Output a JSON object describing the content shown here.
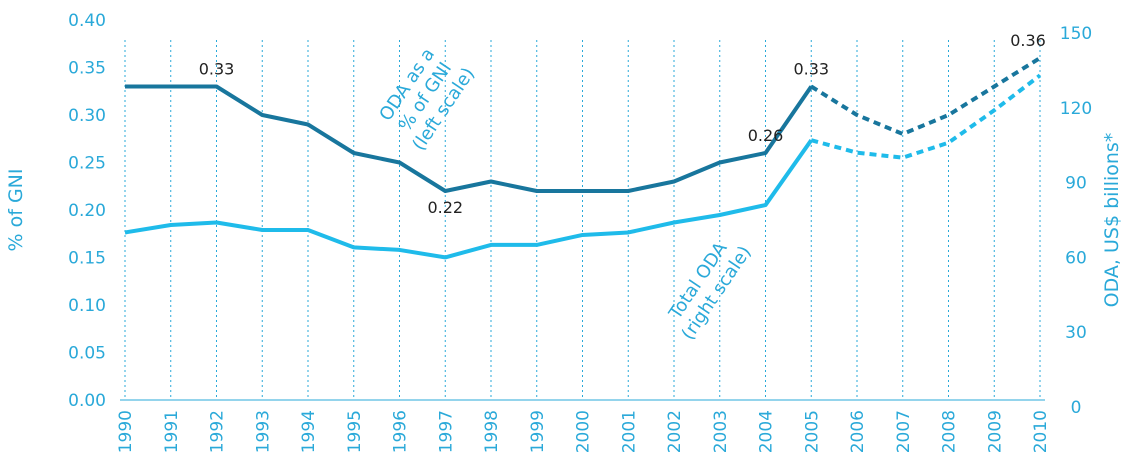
{
  "chart_data": {
    "type": "line",
    "ylabel": "% of GNI",
    "y2label": "ODA, US$ billions*",
    "x": [
      1990,
      1991,
      1992,
      1993,
      1994,
      1995,
      1996,
      1997,
      1998,
      1999,
      2000,
      2001,
      2002,
      2003,
      2004,
      2005,
      2006,
      2007,
      2008,
      2009,
      2010
    ],
    "xlim": [
      1990,
      2010
    ],
    "ylim": [
      0,
      0.4
    ],
    "yticks": [
      {
        "value": 0,
        "label": "0.00"
      },
      {
        "value": 0.05,
        "label": "0.05"
      },
      {
        "value": 0.1,
        "label": "0.10"
      },
      {
        "value": 0.15,
        "label": "0.15"
      },
      {
        "value": 0.2,
        "label": "0.20"
      },
      {
        "value": 0.25,
        "label": "0.25"
      },
      {
        "value": 0.3,
        "label": "0.30"
      },
      {
        "value": 0.35,
        "label": "0.35"
      },
      {
        "value": 0.4,
        "label": "0.40"
      }
    ],
    "y2lim": [
      0,
      150
    ],
    "y2ticks": [
      0,
      30,
      60,
      90,
      120,
      150
    ],
    "grid": true,
    "series": [
      {
        "color": "#18769d",
        "dashed_from": 2005,
        "values": [
          0.33,
          0.33,
          0.33,
          0.3,
          0.29,
          0.26,
          0.25,
          0.22,
          0.23,
          0.22,
          0.22,
          0.22,
          0.23,
          0.25,
          0.26,
          0.33,
          0.3,
          0.28,
          0.3,
          0.33,
          0.36
        ],
        "value_labels": [
          null,
          null,
          "0.33",
          null,
          null,
          null,
          null,
          "0.22",
          null,
          null,
          null,
          null,
          null,
          null,
          "0.26",
          "0.33",
          null,
          null,
          null,
          null,
          "0.36"
        ]
      },
      {
        "color": "#1fbbea",
        "axis": "y2",
        "dashed_from": 2005,
        "values": [
          70,
          73,
          74,
          71,
          71,
          64,
          63,
          60,
          65,
          65,
          69,
          70,
          74,
          77,
          81,
          107,
          102,
          100,
          106,
          119,
          133
        ]
      }
    ],
    "annotations": [
      {
        "lines": [
          "ODA as a",
          "% of GNI",
          "(left scale)"
        ]
      },
      {
        "lines": [
          "Total ODA",
          "(right scale)"
        ]
      }
    ]
  }
}
